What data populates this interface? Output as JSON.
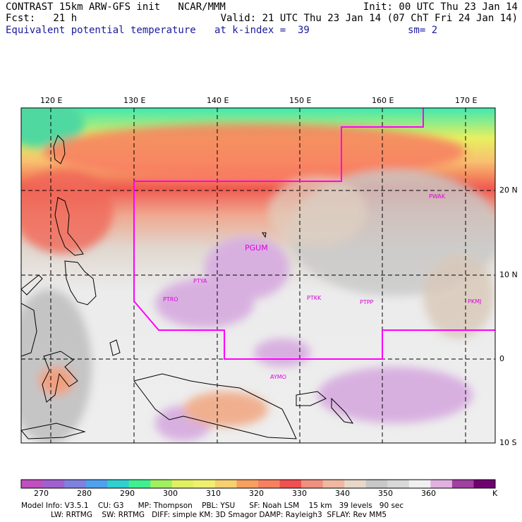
{
  "header": {
    "model": "CONTRAST 15km ARW-GFS init   NCAR/MMM",
    "init": "Init: 00 UTC Thu 23 Jan 14",
    "fcst": "Fcst:   21 h",
    "valid": "Valid: 21 UTC Thu 23 Jan 14 (07 ChT Fri 24 Jan 14)",
    "field": "Equivalent potential temperature",
    "kindex": "at k-index =  39",
    "smooth": "sm= 2"
  },
  "map": {
    "lon_labels": [
      "120 E",
      "130 E",
      "140 E",
      "150 E",
      "160 E",
      "170 E"
    ],
    "lat_labels": [
      "20 N",
      "10 N",
      "0",
      "10 S"
    ],
    "stations": [
      {
        "id": "PGUM"
      },
      {
        "id": "PTYA"
      },
      {
        "id": "PTRO"
      },
      {
        "id": "PTKK"
      },
      {
        "id": "PTPP"
      },
      {
        "id": "PKMJ"
      },
      {
        "id": "PWAK"
      },
      {
        "id": "AYMO"
      }
    ],
    "boundary_color": "#ff00ff"
  },
  "colorbar": {
    "colors": [
      "#c050c0",
      "#a060d0",
      "#8080e0",
      "#50a0f0",
      "#30d0d0",
      "#40f090",
      "#a0f060",
      "#e0f060",
      "#f0f070",
      "#f8d070",
      "#f8a060",
      "#f88060",
      "#f05050",
      "#f09080",
      "#f0b8a0",
      "#e8d8c8",
      "#c8c8c8",
      "#d8d8d8",
      "#f0f0f0",
      "#e0b0e0",
      "#a040a0",
      "#700070"
    ],
    "labels": [
      "270",
      "280",
      "290",
      "300",
      "310",
      "320",
      "330",
      "340",
      "350",
      "360"
    ],
    "unit": "K"
  },
  "footer": {
    "line1": "Model Info: V3.5.1    CU: G3      MP: Thompson    PBL: YSU      SF: Noah LSM    15 km   39 levels   90 sec",
    "line2": "LW: RRTMG    SW: RRTMG   DIFF: simple KM: 3D Smagor DAMP: Rayleigh3  SFLAY: Rev MM5"
  }
}
